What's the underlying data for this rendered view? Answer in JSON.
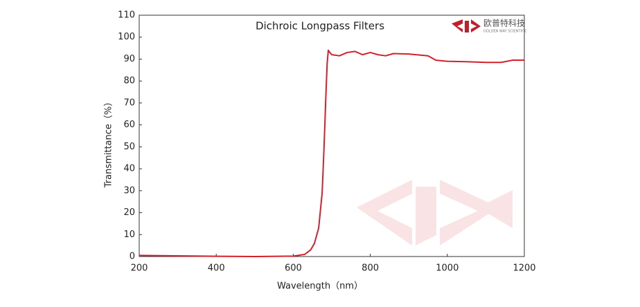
{
  "chart_data": {
    "type": "line",
    "title": "Dichroic Longpass Filters",
    "x_label": "Wavelength（nm）",
    "y_label": "Transmittance（%）",
    "logo": {
      "name": "欧普特科技",
      "subtitle": "GOLDEN WAY SCIENTIFIC"
    },
    "xlim": [
      200,
      1200
    ],
    "xticks": [
      200,
      400,
      600,
      800,
      1000,
      1200
    ],
    "ylim": [
      0,
      110
    ],
    "yticks": [
      0,
      10,
      20,
      30,
      40,
      50,
      60,
      70,
      80,
      90,
      100,
      110
    ],
    "grid": false,
    "series": [
      {
        "name": "Transmittance",
        "color": "#d3202b",
        "x": [
          200,
          300,
          400,
          500,
          600,
          630,
          645,
          655,
          666,
          675,
          680,
          684,
          688,
          691,
          695,
          700,
          720,
          740,
          760,
          780,
          800,
          820,
          840,
          860,
          900,
          950,
          970,
          1000,
          1050,
          1100,
          1140,
          1170,
          1200
        ],
        "values": [
          0.5,
          0.3,
          0.1,
          0,
          0.2,
          1,
          3,
          6,
          13,
          29,
          50,
          70,
          88,
          94,
          93,
          92,
          91.5,
          93,
          93.5,
          92,
          93,
          92,
          91.5,
          92.5,
          92.3,
          91.5,
          89.5,
          89,
          88.8,
          88.5,
          88.5,
          89.5,
          89.5
        ]
      }
    ]
  }
}
